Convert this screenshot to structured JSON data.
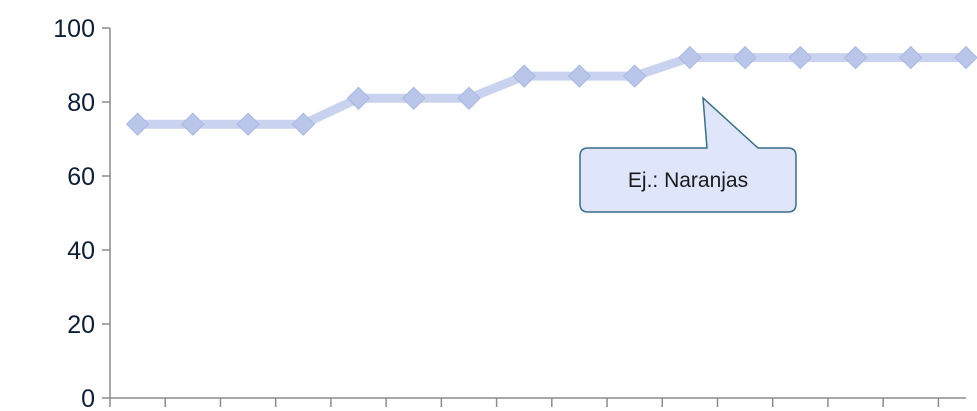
{
  "chart_data": {
    "type": "line",
    "title": "",
    "xlabel": "",
    "ylabel": "",
    "ylim": [
      0,
      100
    ],
    "yticks": [
      0,
      20,
      40,
      60,
      80,
      100
    ],
    "x_category_count": 16,
    "grid": false,
    "legend": "none",
    "series": [
      {
        "values": [
          74,
          74,
          74,
          74,
          81,
          81,
          81,
          87,
          87,
          87,
          92,
          92,
          92,
          92,
          92,
          92
        ],
        "line_color": "#c9d3f0",
        "marker_color": "#b9c6ea",
        "marker": "diamond"
      }
    ],
    "annotation": {
      "text": "Ej.: Naranjas",
      "fill": "#dfe6fb",
      "border": "#3a6f86"
    },
    "axis_color": "#8c8c8c"
  }
}
